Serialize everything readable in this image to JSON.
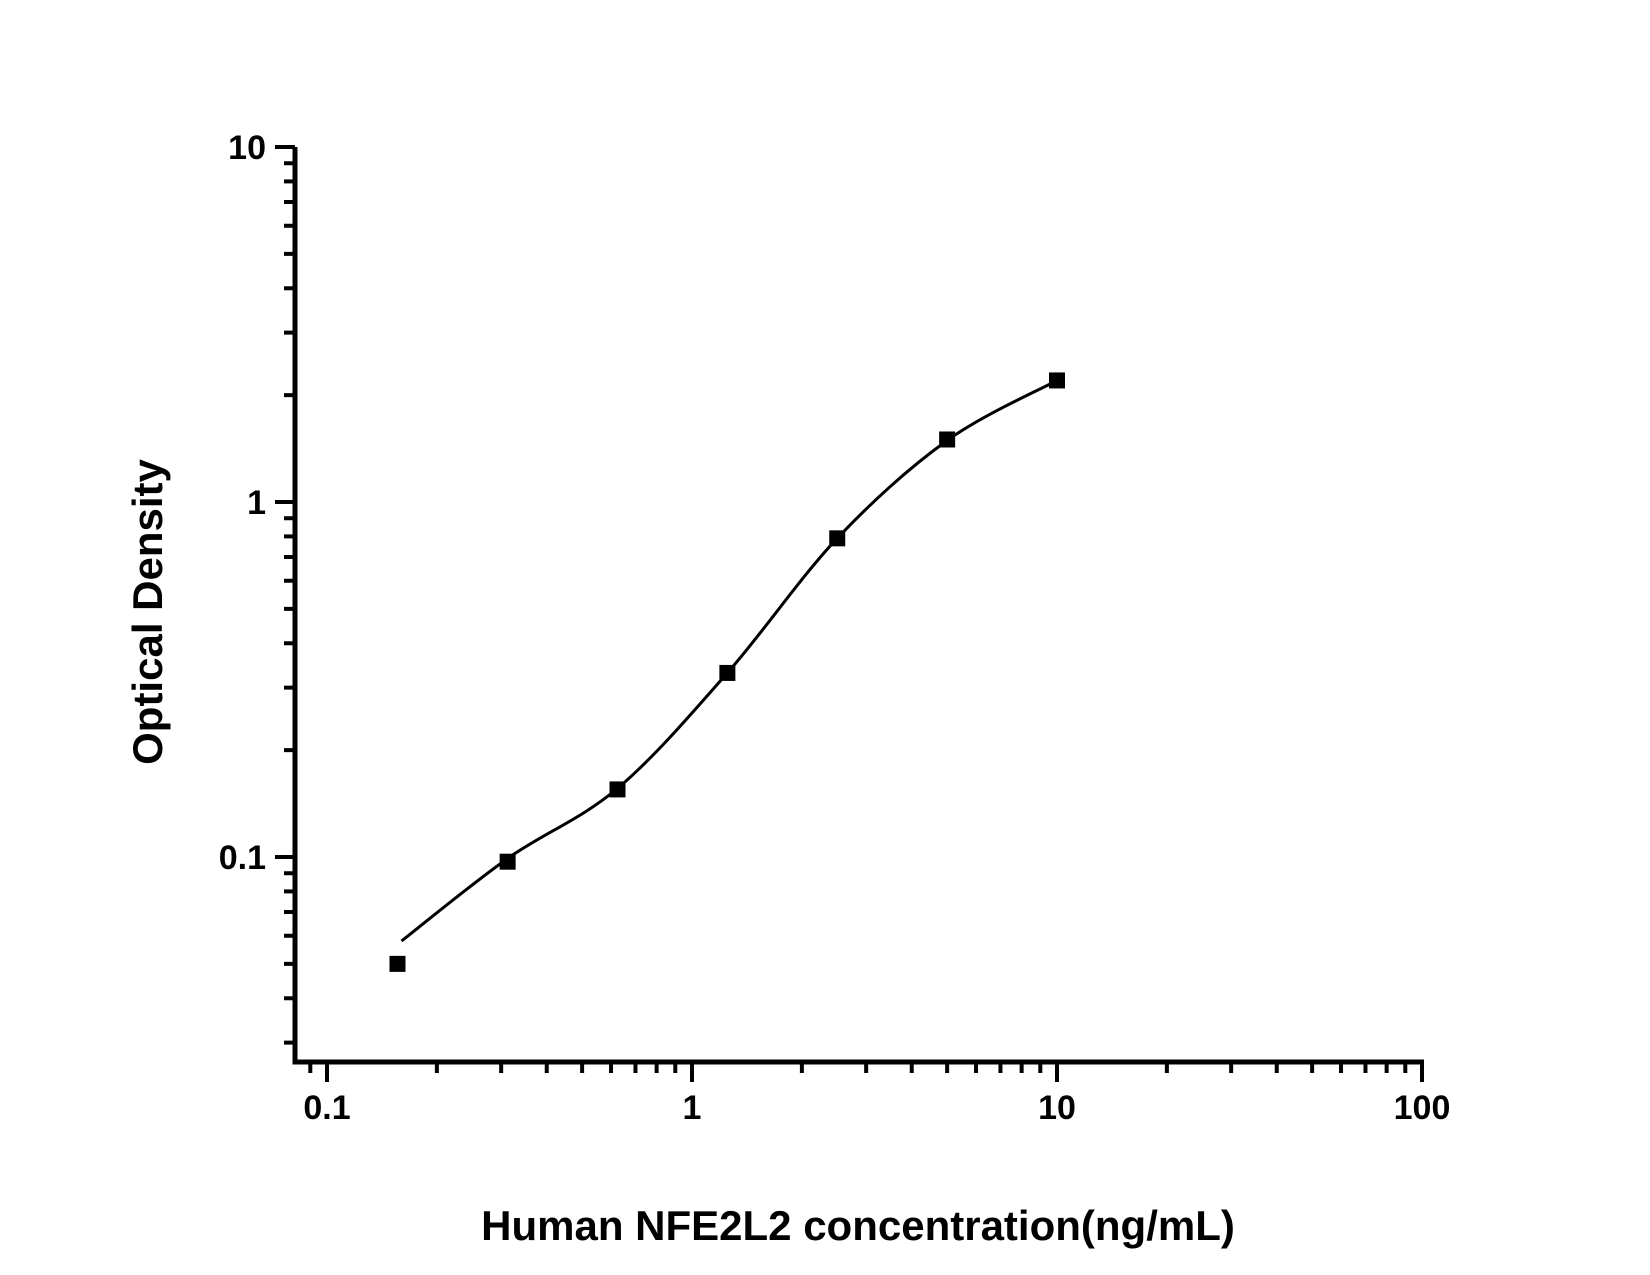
{
  "chart_data": {
    "type": "scatter",
    "title": "",
    "xlabel": "Human NFE2L2 concentration(ng/mL)",
    "ylabel": "Optical Density",
    "x_scale": "log",
    "y_scale": "log",
    "xlim": [
      0.082,
      100
    ],
    "ylim": [
      0.0265,
      10
    ],
    "x_major_ticks": [
      0.1,
      1,
      10,
      100
    ],
    "x_tick_labels": [
      "0.1",
      "1",
      "10",
      "100"
    ],
    "y_major_ticks": [
      0.1,
      1,
      10
    ],
    "y_tick_labels": [
      "0.1",
      "1",
      "10"
    ],
    "grid": false,
    "legend": "none",
    "series": [
      {
        "name": "standard-points",
        "marker": "filled-square",
        "x": [
          0.156,
          0.3125,
          0.625,
          1.25,
          2.5,
          5,
          10
        ],
        "y": [
          0.05,
          0.097,
          0.155,
          0.33,
          0.79,
          1.5,
          2.2
        ]
      }
    ],
    "fit_curve": {
      "name": "standard-curve-fit",
      "x": [
        0.16,
        0.3125,
        0.625,
        1.25,
        2.5,
        5,
        10
      ],
      "y": [
        0.058,
        0.099,
        0.156,
        0.33,
        0.79,
        1.49,
        2.2
      ]
    },
    "colors": {
      "points": "#000000",
      "curve": "#000000",
      "axis": "#000000",
      "background": "#ffffff"
    }
  }
}
